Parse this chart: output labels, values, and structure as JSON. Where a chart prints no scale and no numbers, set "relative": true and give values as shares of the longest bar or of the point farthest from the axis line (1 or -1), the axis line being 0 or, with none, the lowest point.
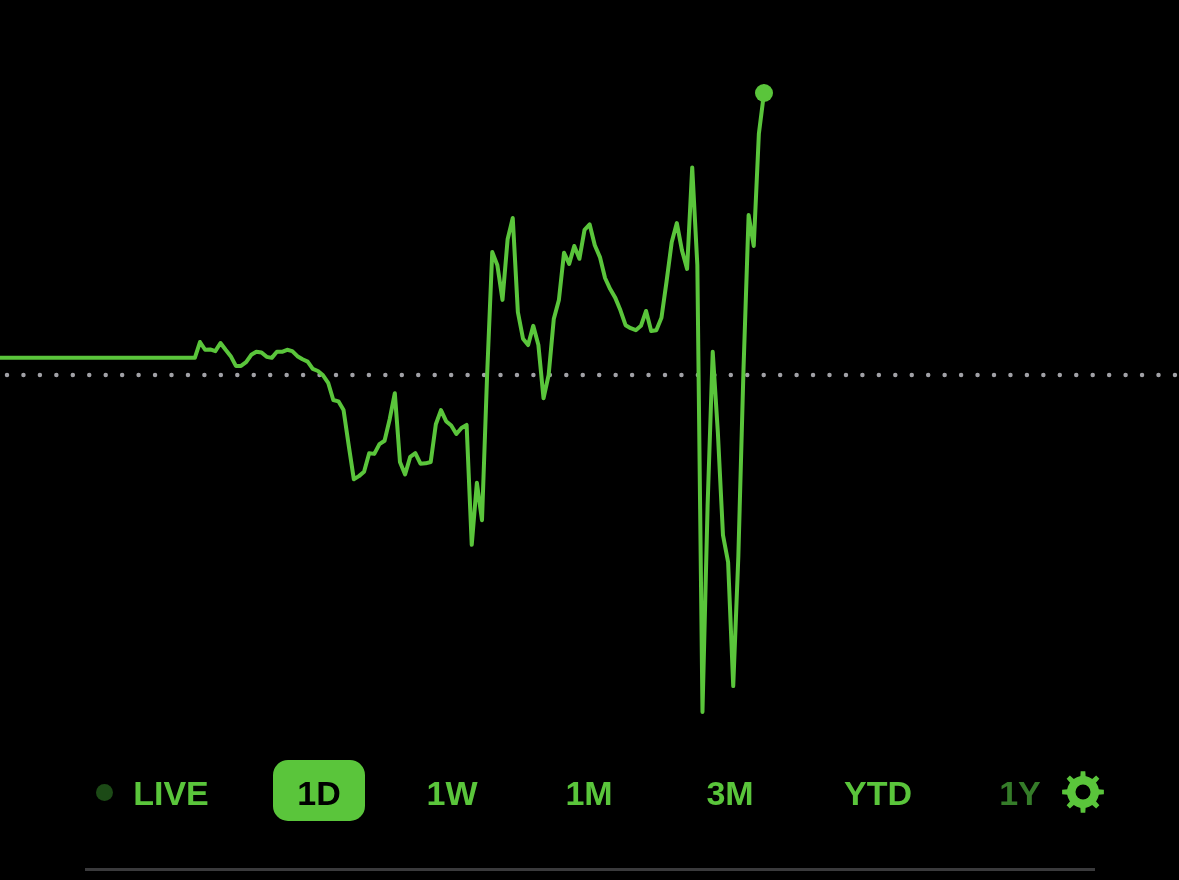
{
  "chart_data": {
    "type": "line",
    "relative": true,
    "categories": [
      null,
      null,
      null,
      null,
      null,
      null,
      null,
      null,
      null,
      null,
      null,
      null,
      null,
      null,
      null,
      null,
      null,
      null,
      null,
      null,
      null,
      null,
      null,
      null,
      null,
      null,
      null,
      null,
      null,
      null,
      null,
      null,
      null,
      null,
      null,
      null,
      null,
      null,
      null,
      null,
      null,
      null,
      null,
      null,
      null,
      null,
      null,
      null,
      null,
      null,
      null,
      null,
      null,
      null,
      null,
      null,
      null,
      null,
      null,
      null,
      null,
      null,
      null,
      null,
      null,
      null,
      null,
      null,
      null,
      null,
      null,
      null,
      null,
      null,
      null,
      null,
      null,
      null,
      null,
      null,
      null,
      null,
      null,
      null,
      null,
      null,
      null,
      null,
      null,
      null,
      null,
      null,
      null,
      null,
      null,
      null,
      null,
      null,
      null,
      null,
      null,
      null,
      null,
      null,
      null,
      null,
      null,
      null,
      null,
      null,
      null,
      null,
      null,
      null,
      null,
      null,
      null,
      null,
      null,
      null,
      null,
      null,
      null,
      null,
      null,
      null,
      null,
      null,
      null,
      null,
      null,
      null,
      null,
      null,
      null,
      null,
      null,
      null,
      null,
      null,
      null,
      null,
      null,
      null,
      null,
      null,
      null,
      null,
      null,
      null
    ],
    "series": [
      {
        "color": "#5ac53b",
        "values": [
          0.051,
          0.051,
          0.051,
          0.051,
          0.051,
          0.051,
          0.051,
          0.051,
          0.051,
          0.051,
          0.051,
          0.051,
          0.051,
          0.051,
          0.051,
          0.051,
          0.051,
          0.051,
          0.051,
          0.051,
          0.051,
          0.051,
          0.051,
          0.051,
          0.051,
          0.051,
          0.051,
          0.051,
          0.051,
          0.051,
          0.051,
          0.051,
          0.051,
          0.051,
          0.051,
          0.051,
          0.051,
          0.051,
          0.051,
          0.098,
          0.075,
          0.076,
          0.071,
          0.095,
          0.075,
          0.056,
          0.027,
          0.027,
          0.038,
          0.06,
          0.069,
          0.067,
          0.054,
          0.051,
          0.069,
          0.069,
          0.075,
          0.071,
          0.056,
          0.047,
          0.04,
          0.018,
          0.012,
          -0.001,
          -0.023,
          -0.074,
          -0.078,
          -0.104,
          -0.208,
          -0.309,
          -0.3,
          -0.287,
          -0.232,
          -0.234,
          -0.205,
          -0.195,
          -0.131,
          -0.054,
          -0.258,
          -0.295,
          -0.243,
          -0.232,
          -0.263,
          -0.262,
          -0.258,
          -0.146,
          -0.104,
          -0.137,
          -0.15,
          -0.175,
          -0.157,
          -0.148,
          -0.504,
          -0.32,
          -0.431,
          0,
          0.365,
          0.326,
          0.223,
          0.403,
          0.466,
          0.187,
          0.108,
          0.089,
          0.146,
          0.089,
          -0.069,
          0,
          0.166,
          0.223,
          0.363,
          0.33,
          0.383,
          0.345,
          0.431,
          0.447,
          0.385,
          0.35,
          0.288,
          0.255,
          0.229,
          0.192,
          0.148,
          0.139,
          0.133,
          0.146,
          0.19,
          0.131,
          0.133,
          0.17,
          0.278,
          0.394,
          0.451,
          0.37,
          0.315,
          0.616,
          0.326,
          -1,
          -0.388,
          0.069,
          -0.17,
          -0.475,
          -0.555,
          -0.923,
          -0.537,
          0.016,
          0.475,
          0.383,
          0.716,
          0.837
        ]
      }
    ],
    "ref_lines": [
      {
        "axis": "y",
        "value": 0,
        "color": "#a1a1a6",
        "line_style": "dotted"
      }
    ],
    "annotations": [
      "LIVE",
      "1D",
      "1W",
      "1M",
      "3M",
      "YTD",
      "1Y"
    ]
  }
}
